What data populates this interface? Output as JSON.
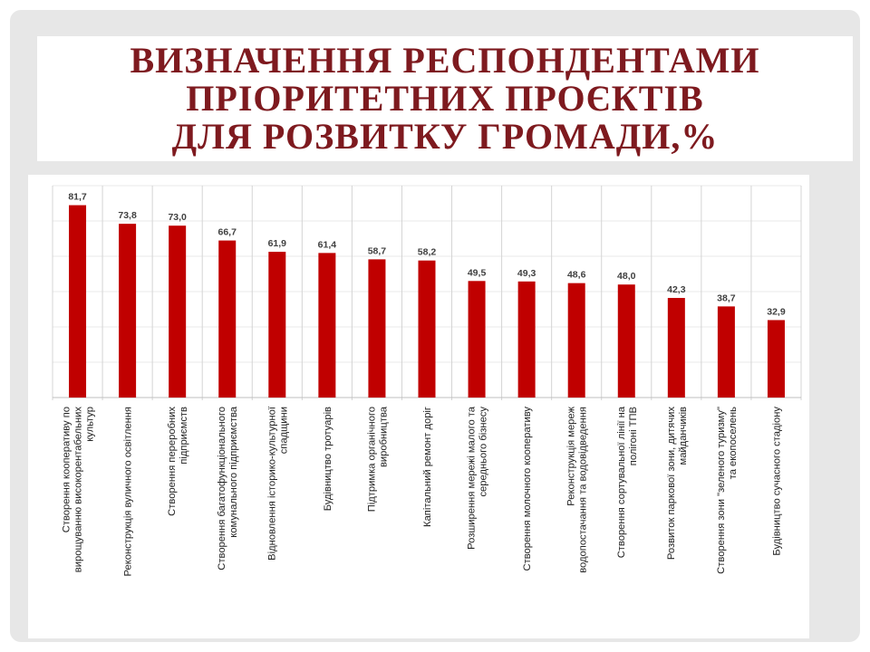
{
  "title": {
    "line1": "ВИЗНАЧЕННЯ РЕСПОНДЕНТАМИ",
    "line2": "ПРІОРИТЕТНИХ ПРОЄКТІВ",
    "line3": "ДЛЯ РОЗВИТКУ ГРОМАДИ,%"
  },
  "colors": {
    "bar": "#c00000",
    "title": "#7e1a1f"
  },
  "chart_data": {
    "type": "bar",
    "categories": [
      [
        "Створення кооперативу по",
        "вирощуванню високорентабельних",
        "культур"
      ],
      [
        "Реконструкція вуличного освітлення"
      ],
      [
        "Створення переробних",
        "підприємств"
      ],
      [
        "Створення багатофункціонального",
        "комунального підприємства"
      ],
      [
        "Відновлення історико-культурної",
        "спадщини"
      ],
      [
        "Будівництво тротуарів"
      ],
      [
        "Підтримка органічного",
        "виробництва"
      ],
      [
        "Капітальний ремонт доріг"
      ],
      [
        "Розширення мережі малого та",
        "середнього бізнесу"
      ],
      [
        "Створення молочного кооперативу"
      ],
      [
        "Реконструкція мереж",
        "водопостачання та водовідведення"
      ],
      [
        "Створення сортувальної лінії на",
        "полігоні ТПВ"
      ],
      [
        "Розвиток паркової зони, дитячих",
        "майданчиків"
      ],
      [
        "Створення зони \"зеленого туризму\"",
        "та екопоселень"
      ],
      [
        "Будівництво сучасного стадіону"
      ]
    ],
    "values": [
      81.7,
      73.8,
      73.0,
      66.7,
      61.9,
      61.4,
      58.7,
      58.2,
      49.5,
      49.3,
      48.6,
      48.0,
      42.3,
      38.7,
      32.9
    ],
    "value_labels": [
      "81,7",
      "73,8",
      "73,0",
      "66,7",
      "61,9",
      "61,4",
      "58,7",
      "58,2",
      "49,5",
      "49,3",
      "48,6",
      "48,0",
      "42,3",
      "38,7",
      "32,9"
    ],
    "ylim": [
      0,
      90
    ],
    "grid": true,
    "legend": "none"
  }
}
